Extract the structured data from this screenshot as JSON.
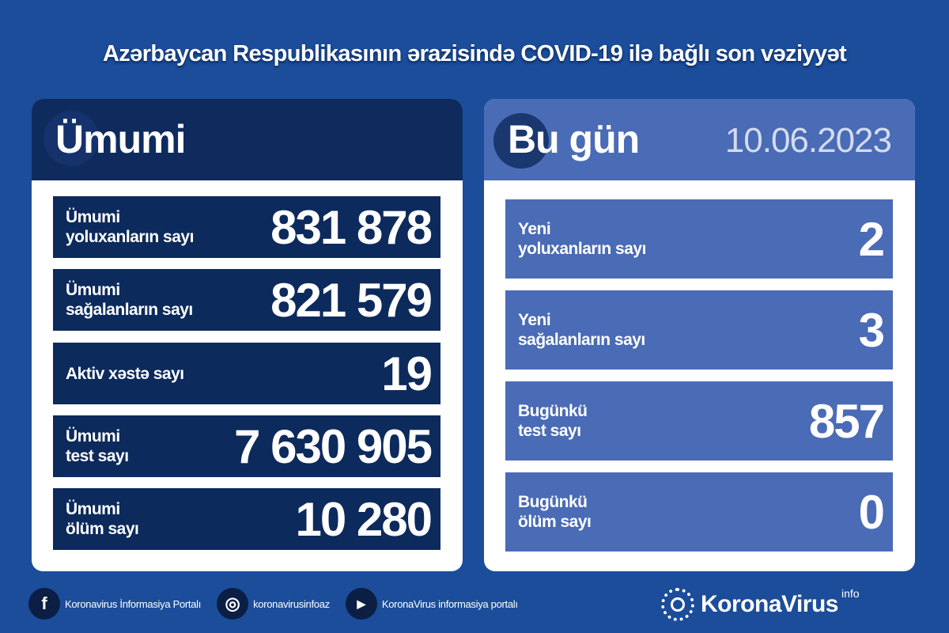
{
  "title": "Azərbaycan Respublikasının ərazisində COVID-19 ilə bağlı son vəziyyət",
  "total": {
    "heading": "Ümumi",
    "rows": [
      {
        "label1": "Ümumi",
        "label2": "yoluxanların sayı",
        "value": "831 878"
      },
      {
        "label1": "Ümumi",
        "label2": "sağalanların sayı",
        "value": "821 579"
      },
      {
        "label1": "Aktiv xəstə sayı",
        "label2": "",
        "value": "19"
      },
      {
        "label1": "Ümumi",
        "label2": "test sayı",
        "value": "7 630 905"
      },
      {
        "label1": "Ümumi",
        "label2": "ölüm sayı",
        "value": "10 280"
      }
    ]
  },
  "today": {
    "heading": "Bu gün",
    "date": "10.06.2023",
    "rows": [
      {
        "label1": "Yeni",
        "label2": "yoluxanların sayı",
        "value": "2"
      },
      {
        "label1": "Yeni",
        "label2": "sağalanların sayı",
        "value": "3"
      },
      {
        "label1": "Bugünkü",
        "label2": "test sayı",
        "value": "857"
      },
      {
        "label1": "Bugünkü",
        "label2": "ölüm sayı",
        "value": "0"
      }
    ]
  },
  "footer": {
    "facebook": "Koronavirus İnformasiya Portalı",
    "instagram": "koronavirusinfoaz",
    "youtube": "KoronaVirus informasiya portalı",
    "logo": "KoronaVirus",
    "logo_sup": "info"
  },
  "colors": {
    "background": "#1b4d9a",
    "left_rows": "#0d2a5c",
    "right_rows": "#4a6bb5"
  }
}
